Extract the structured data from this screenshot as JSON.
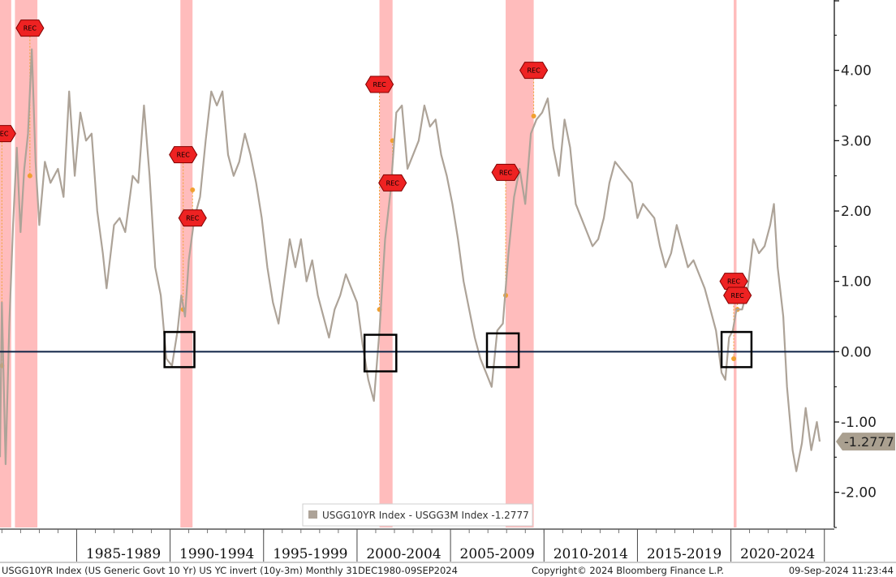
{
  "chart_data": {
    "type": "line",
    "title": "",
    "xlabel": "",
    "ylabel": "",
    "ylim": [
      -2.5,
      5.0
    ],
    "y_ticks": [
      4.0,
      3.0,
      2.0,
      1.0,
      0.0,
      -1.0,
      -2.0
    ],
    "y_tick_labels": [
      "4.00",
      "3.00",
      "2.00",
      "1.00",
      "0.00",
      "-1.00",
      "-2.00"
    ],
    "x_range": [
      1980.9,
      2024.75
    ],
    "periods": [
      "1985-1989",
      "1990-1994",
      "1995-1999",
      "2000-2004",
      "2005-2009",
      "2010-2014",
      "2015-2019",
      "2020-2024"
    ],
    "period_bounds": [
      1985,
      1990,
      1995,
      2000,
      2005,
      2010,
      2015,
      2020,
      2025
    ],
    "series": [
      {
        "name": "USGG10YR Index - USGG3M Index",
        "color": "#ada398",
        "points": [
          [
            1980.9,
            -1.5
          ],
          [
            1981.0,
            0.7
          ],
          [
            1981.2,
            -1.6
          ],
          [
            1981.4,
            0.4
          ],
          [
            1981.6,
            1.8
          ],
          [
            1981.8,
            2.9
          ],
          [
            1982.0,
            1.7
          ],
          [
            1982.2,
            2.6
          ],
          [
            1982.4,
            3.1
          ],
          [
            1982.6,
            4.3
          ],
          [
            1982.8,
            2.7
          ],
          [
            1983.0,
            1.8
          ],
          [
            1983.3,
            2.7
          ],
          [
            1983.6,
            2.4
          ],
          [
            1984.0,
            2.6
          ],
          [
            1984.3,
            2.2
          ],
          [
            1984.6,
            3.7
          ],
          [
            1984.9,
            2.5
          ],
          [
            1985.2,
            3.4
          ],
          [
            1985.5,
            3.0
          ],
          [
            1985.8,
            3.1
          ],
          [
            1986.1,
            2.0
          ],
          [
            1986.4,
            1.4
          ],
          [
            1986.6,
            0.9
          ],
          [
            1987.0,
            1.8
          ],
          [
            1987.3,
            1.9
          ],
          [
            1987.6,
            1.7
          ],
          [
            1988.0,
            2.5
          ],
          [
            1988.3,
            2.4
          ],
          [
            1988.6,
            3.5
          ],
          [
            1988.9,
            2.5
          ],
          [
            1989.2,
            1.2
          ],
          [
            1989.5,
            0.8
          ],
          [
            1989.8,
            -0.1
          ],
          [
            1990.1,
            -0.2
          ],
          [
            1990.4,
            0.3
          ],
          [
            1990.6,
            0.8
          ],
          [
            1990.8,
            0.5
          ],
          [
            1991.0,
            1.3
          ],
          [
            1991.3,
            1.9
          ],
          [
            1991.6,
            2.2
          ],
          [
            1991.9,
            3.0
          ],
          [
            1992.2,
            3.7
          ],
          [
            1992.5,
            3.5
          ],
          [
            1992.8,
            3.7
          ],
          [
            1993.1,
            2.8
          ],
          [
            1993.4,
            2.5
          ],
          [
            1993.7,
            2.7
          ],
          [
            1994.0,
            3.1
          ],
          [
            1994.3,
            2.8
          ],
          [
            1994.6,
            2.4
          ],
          [
            1994.9,
            1.9
          ],
          [
            1995.2,
            1.2
          ],
          [
            1995.5,
            0.7
          ],
          [
            1995.8,
            0.4
          ],
          [
            1996.1,
            1.0
          ],
          [
            1996.4,
            1.6
          ],
          [
            1996.7,
            1.2
          ],
          [
            1997.0,
            1.6
          ],
          [
            1997.3,
            1.0
          ],
          [
            1997.6,
            1.3
          ],
          [
            1997.9,
            0.8
          ],
          [
            1998.2,
            0.5
          ],
          [
            1998.5,
            0.2
          ],
          [
            1998.8,
            0.6
          ],
          [
            1999.1,
            0.8
          ],
          [
            1999.4,
            1.1
          ],
          [
            1999.7,
            0.9
          ],
          [
            2000.0,
            0.7
          ],
          [
            2000.3,
            0.1
          ],
          [
            2000.6,
            -0.4
          ],
          [
            2000.9,
            -0.7
          ],
          [
            2001.2,
            0.3
          ],
          [
            2001.5,
            1.6
          ],
          [
            2001.8,
            2.3
          ],
          [
            2002.1,
            3.4
          ],
          [
            2002.4,
            3.5
          ],
          [
            2002.7,
            2.6
          ],
          [
            2003.0,
            2.8
          ],
          [
            2003.3,
            3.0
          ],
          [
            2003.6,
            3.5
          ],
          [
            2003.9,
            3.2
          ],
          [
            2004.2,
            3.3
          ],
          [
            2004.5,
            2.8
          ],
          [
            2004.8,
            2.5
          ],
          [
            2005.1,
            2.1
          ],
          [
            2005.4,
            1.6
          ],
          [
            2005.7,
            1.0
          ],
          [
            2006.0,
            0.6
          ],
          [
            2006.3,
            0.2
          ],
          [
            2006.6,
            -0.1
          ],
          [
            2006.9,
            -0.3
          ],
          [
            2007.2,
            -0.5
          ],
          [
            2007.5,
            0.3
          ],
          [
            2007.8,
            0.4
          ],
          [
            2008.1,
            1.4
          ],
          [
            2008.4,
            2.2
          ],
          [
            2008.7,
            2.6
          ],
          [
            2009.0,
            2.1
          ],
          [
            2009.3,
            3.1
          ],
          [
            2009.6,
            3.3
          ],
          [
            2009.9,
            3.4
          ],
          [
            2010.2,
            3.6
          ],
          [
            2010.5,
            2.9
          ],
          [
            2010.8,
            2.5
          ],
          [
            2011.1,
            3.3
          ],
          [
            2011.4,
            2.9
          ],
          [
            2011.7,
            2.1
          ],
          [
            2012.0,
            1.9
          ],
          [
            2012.3,
            1.7
          ],
          [
            2012.6,
            1.5
          ],
          [
            2012.9,
            1.6
          ],
          [
            2013.2,
            1.9
          ],
          [
            2013.5,
            2.4
          ],
          [
            2013.8,
            2.7
          ],
          [
            2014.1,
            2.6
          ],
          [
            2014.4,
            2.5
          ],
          [
            2014.7,
            2.4
          ],
          [
            2015.0,
            1.9
          ],
          [
            2015.3,
            2.1
          ],
          [
            2015.6,
            2.0
          ],
          [
            2015.9,
            1.9
          ],
          [
            2016.2,
            1.5
          ],
          [
            2016.5,
            1.2
          ],
          [
            2016.8,
            1.4
          ],
          [
            2017.1,
            1.8
          ],
          [
            2017.4,
            1.5
          ],
          [
            2017.7,
            1.2
          ],
          [
            2018.0,
            1.3
          ],
          [
            2018.3,
            1.1
          ],
          [
            2018.6,
            0.9
          ],
          [
            2018.9,
            0.6
          ],
          [
            2019.2,
            0.3
          ],
          [
            2019.5,
            -0.3
          ],
          [
            2019.7,
            -0.4
          ],
          [
            2019.9,
            0.2
          ],
          [
            2020.1,
            0.3
          ],
          [
            2020.3,
            0.6
          ],
          [
            2020.6,
            0.6
          ],
          [
            2020.9,
            0.9
          ],
          [
            2021.2,
            1.6
          ],
          [
            2021.5,
            1.4
          ],
          [
            2021.8,
            1.5
          ],
          [
            2022.1,
            1.8
          ],
          [
            2022.3,
            2.1
          ],
          [
            2022.5,
            1.2
          ],
          [
            2022.8,
            0.5
          ],
          [
            2023.0,
            -0.5
          ],
          [
            2023.3,
            -1.4
          ],
          [
            2023.5,
            -1.7
          ],
          [
            2023.8,
            -1.3
          ],
          [
            2024.0,
            -0.8
          ],
          [
            2024.3,
            -1.4
          ],
          [
            2024.6,
            -1.0
          ],
          [
            2024.75,
            -1.2777
          ]
        ]
      }
    ],
    "last_value": "-1.2777",
    "zero_line": true,
    "recession_bands": [
      [
        1980.9,
        1981.5
      ],
      [
        1981.7,
        1982.9
      ],
      [
        1990.55,
        1991.2
      ],
      [
        2001.2,
        2001.9
      ],
      [
        2007.95,
        2009.45
      ],
      [
        2020.15,
        2020.3
      ]
    ],
    "rec_markers": [
      {
        "label": "REC",
        "x": 1981.0,
        "y": 3.1,
        "dot_y": -0.2
      },
      {
        "label": "REC",
        "x": 1982.5,
        "y": 4.6,
        "dot_y": 2.5
      },
      {
        "label": "REC",
        "x": 1990.7,
        "y": 2.8,
        "dot_y": 0.6
      },
      {
        "label": "REC",
        "x": 1991.2,
        "y": 1.9,
        "dot_y": 2.3
      },
      {
        "label": "REC",
        "x": 2001.2,
        "y": 3.8,
        "dot_y": 0.6
      },
      {
        "label": "REC",
        "x": 2001.9,
        "y": 2.4,
        "dot_y": 3.0
      },
      {
        "label": "REC",
        "x": 2007.95,
        "y": 2.55,
        "dot_y": 0.8
      },
      {
        "label": "REC",
        "x": 2009.45,
        "y": 4.0,
        "dot_y": 3.35
      },
      {
        "label": "REC",
        "x": 2020.15,
        "y": 1.0,
        "dot_y": -0.1
      },
      {
        "label": "REC",
        "x": 2020.35,
        "y": 0.8,
        "dot_y": 0.6
      }
    ],
    "highlight_boxes": [
      {
        "x_start": 1989.7,
        "x_end": 1991.3,
        "y_top": 0.28,
        "y_bottom": -0.22
      },
      {
        "x_start": 2000.4,
        "x_end": 2002.1,
        "y_top": 0.24,
        "y_bottom": -0.28
      },
      {
        "x_start": 2006.95,
        "x_end": 2008.65,
        "y_top": 0.26,
        "y_bottom": -0.22
      },
      {
        "x_start": 2019.5,
        "x_end": 2021.1,
        "y_top": 0.28,
        "y_bottom": -0.22
      }
    ],
    "legend": "USGG10YR Index - USGG3M Index -1.2777",
    "colors": {
      "line": "#ada398",
      "recession": "#ffbcbc",
      "zero_line": "#0f2346",
      "rec_badge": "#ee2222",
      "marker": "#f0a030",
      "boxes": "#000000"
    }
  },
  "footer": {
    "left": "USGG10YR Index (US Generic Govt 10 Yr) US YC invert (10y-3m)  Monthly 31DEC1980-09SEP2024",
    "center": "Copyright© 2024 Bloomberg Finance L.P.",
    "right": "09-Sep-2024 11:23:44"
  }
}
